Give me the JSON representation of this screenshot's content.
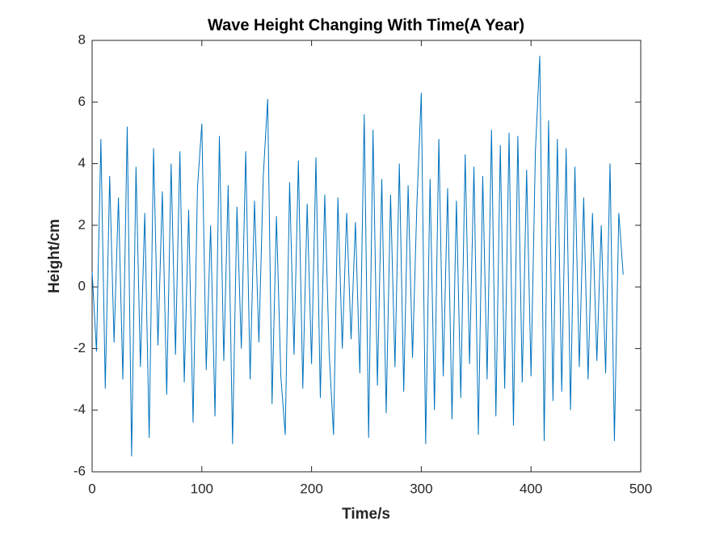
{
  "chart_data": {
    "type": "line",
    "title": "Wave Height Changing With Time(A Year)",
    "x_label": "Time/s",
    "y_label": "Height/cm",
    "x": [
      0,
      4,
      8,
      12,
      16,
      20,
      24,
      28,
      32,
      36,
      40,
      44,
      48,
      52,
      56,
      60,
      64,
      68,
      72,
      76,
      80,
      84,
      88,
      92,
      96,
      100,
      104,
      108,
      112,
      116,
      120,
      124,
      128,
      132,
      136,
      140,
      144,
      148,
      152,
      156,
      160,
      164,
      168,
      172,
      176,
      180,
      184,
      188,
      192,
      196,
      200,
      204,
      208,
      212,
      216,
      220,
      224,
      228,
      232,
      236,
      240,
      244,
      248,
      252,
      256,
      260,
      264,
      268,
      272,
      276,
      280,
      284,
      288,
      292,
      296,
      300,
      304,
      308,
      312,
      316,
      320,
      324,
      328,
      332,
      336,
      340,
      344,
      348,
      352,
      356,
      360,
      364,
      368,
      372,
      376,
      380,
      384,
      388,
      392,
      396,
      400,
      404,
      408,
      412,
      416,
      420,
      424,
      428,
      432,
      436,
      440,
      444,
      448,
      452,
      456,
      460,
      464,
      468,
      472,
      476,
      480,
      484
    ],
    "series": [
      {
        "name": "Height",
        "color": "#0072bd",
        "values": [
          0.5,
          -2.1,
          4.8,
          -3.3,
          3.6,
          -1.8,
          2.9,
          -3.0,
          5.2,
          -5.5,
          3.9,
          -2.6,
          2.4,
          -4.9,
          4.5,
          -1.9,
          3.1,
          -3.5,
          4.0,
          -2.2,
          4.4,
          -3.1,
          2.5,
          -4.4,
          3.2,
          5.3,
          -2.7,
          2.0,
          -4.2,
          4.9,
          -2.4,
          3.3,
          -5.1,
          2.6,
          -2.0,
          4.4,
          -3.0,
          2.8,
          -1.8,
          3.6,
          6.1,
          -3.8,
          2.3,
          -2.9,
          -4.8,
          3.4,
          -2.2,
          4.1,
          -3.3,
          2.7,
          -2.5,
          4.2,
          -3.6,
          3.0,
          -2.1,
          -4.8,
          2.9,
          -2.0,
          2.4,
          -1.7,
          2.1,
          -2.8,
          5.6,
          -4.9,
          5.1,
          -3.2,
          3.5,
          -4.1,
          3.0,
          -2.6,
          4.0,
          -3.4,
          3.3,
          -2.3,
          2.7,
          6.3,
          -5.1,
          3.5,
          -4.0,
          4.8,
          -2.9,
          3.2,
          -4.3,
          2.8,
          -3.6,
          4.3,
          -2.5,
          3.9,
          -4.8,
          3.6,
          -3.0,
          5.1,
          -4.2,
          4.6,
          -3.3,
          5.0,
          -4.5,
          4.9,
          -3.1,
          3.8,
          -2.9,
          4.4,
          7.5,
          -5.0,
          5.4,
          -3.7,
          4.8,
          -3.4,
          4.5,
          -4.0,
          3.9,
          -2.6,
          2.9,
          -3.0,
          2.4,
          -2.4,
          2.0,
          -2.8,
          4.0,
          -5.0,
          2.4,
          0.4
        ]
      }
    ],
    "xlim": [
      0,
      500
    ],
    "xticks": [
      0,
      100,
      200,
      300,
      400,
      500
    ],
    "ylim": [
      -6,
      8
    ],
    "yticks": [
      -6,
      -4,
      -2,
      0,
      2,
      4,
      6,
      8
    ]
  }
}
